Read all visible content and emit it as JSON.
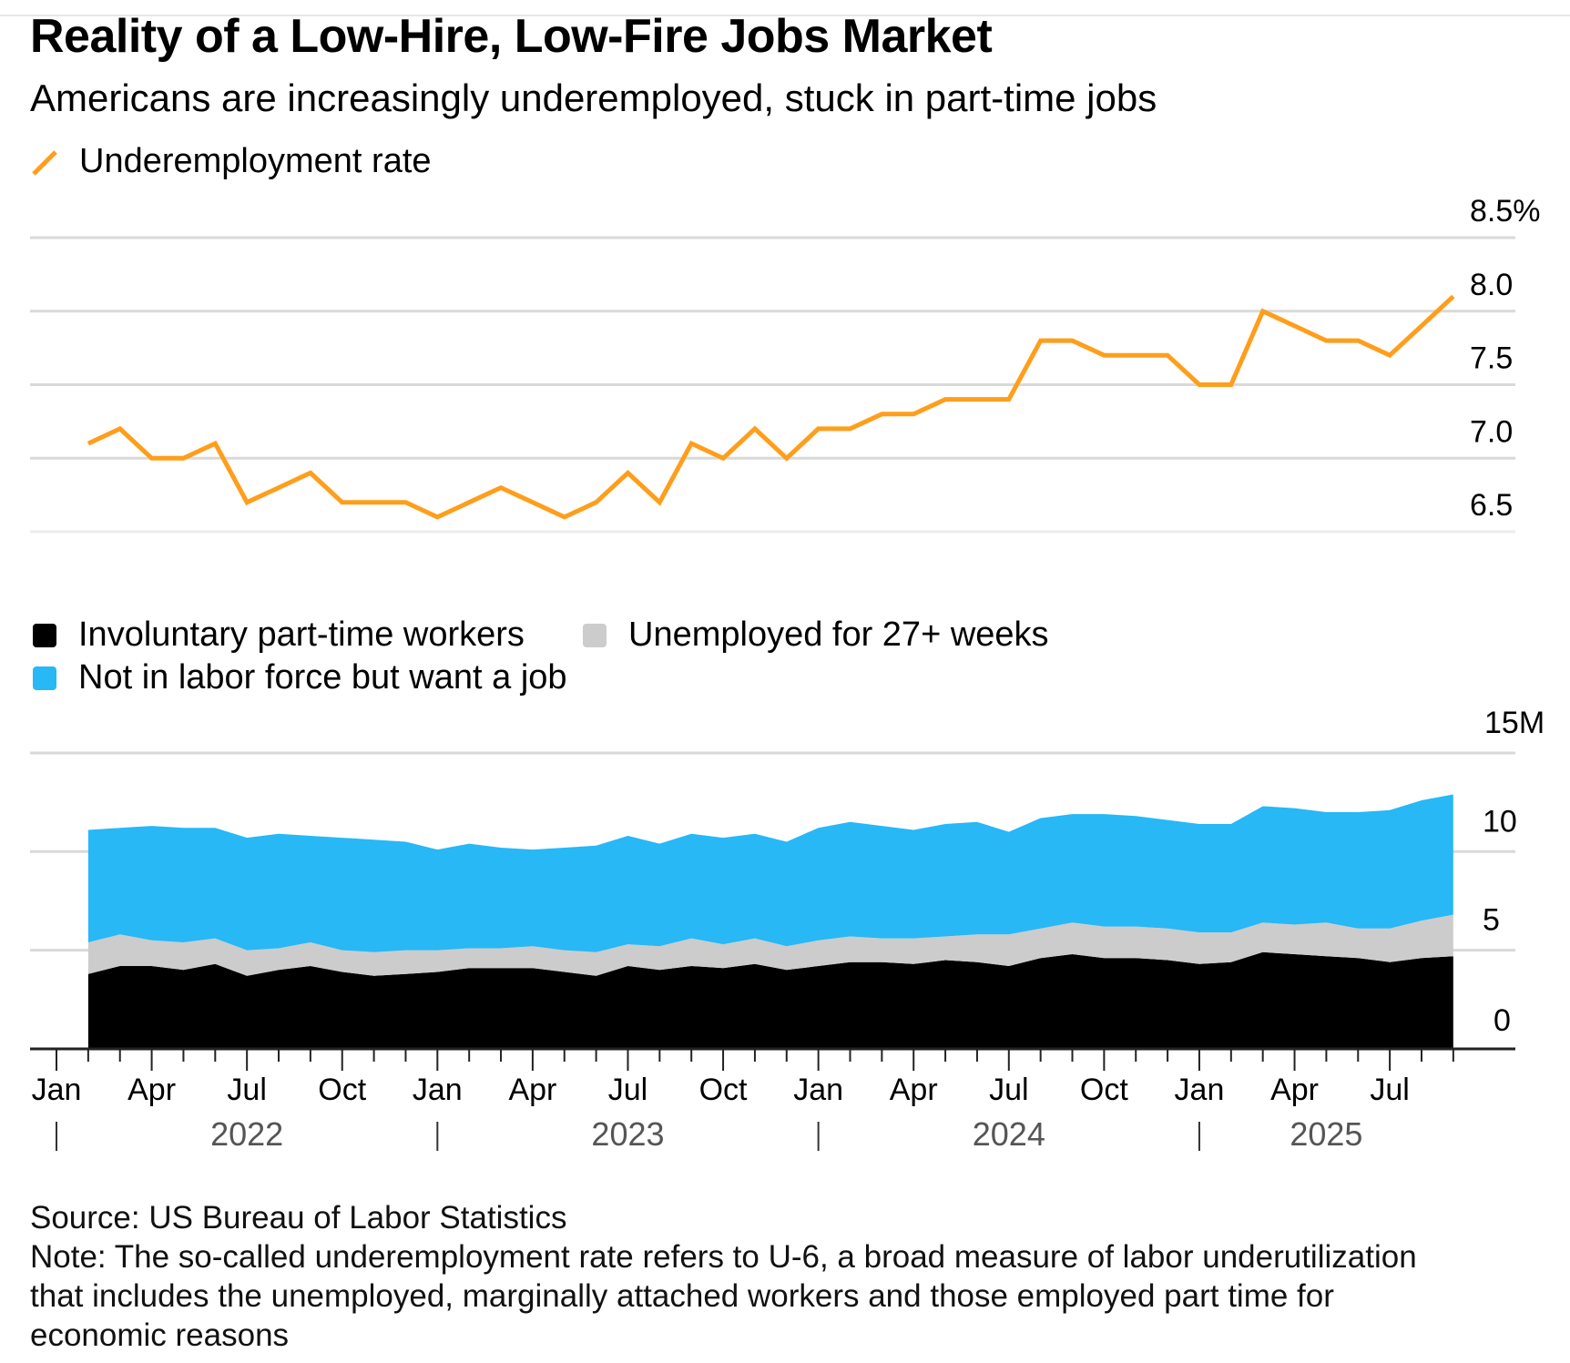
{
  "title": "Reality of a Low-Hire, Low-Fire Jobs Market",
  "subtitle": "Americans are increasingly underemployed, stuck in part-time jobs",
  "source": "Source: US Bureau of Labor Statistics",
  "note_lines": [
    "Note: The so-called underemployment rate refers to U-6, a broad measure of labor underutilization",
    "that includes the unemployed, marginally attached workers and those employed part time for",
    "economic reasons"
  ],
  "chart_data": [
    {
      "type": "line",
      "legend": [
        {
          "name": "Underemployment rate",
          "color": "#ff9e1b"
        }
      ],
      "legend_position": "top-left",
      "x": [
        "2022-02",
        "2022-03",
        "2022-04",
        "2022-05",
        "2022-06",
        "2022-07",
        "2022-08",
        "2022-09",
        "2022-10",
        "2022-11",
        "2022-12",
        "2023-01",
        "2023-02",
        "2023-03",
        "2023-04",
        "2023-05",
        "2023-06",
        "2023-07",
        "2023-08",
        "2023-09",
        "2023-10",
        "2023-11",
        "2023-12",
        "2024-01",
        "2024-02",
        "2024-03",
        "2024-04",
        "2024-05",
        "2024-06",
        "2024-07",
        "2024-08",
        "2024-09",
        "2024-10",
        "2024-11",
        "2024-12",
        "2025-01",
        "2025-02",
        "2025-03",
        "2025-04",
        "2025-05",
        "2025-06",
        "2025-07",
        "2025-08",
        "2025-09"
      ],
      "series": [
        {
          "name": "Underemployment rate",
          "color": "#ff9e1b",
          "values": [
            7.1,
            7.2,
            7.0,
            7.0,
            7.1,
            6.7,
            6.8,
            6.9,
            6.7,
            6.7,
            6.7,
            6.6,
            6.7,
            6.8,
            6.7,
            6.6,
            6.7,
            6.9,
            6.7,
            7.1,
            7.0,
            7.2,
            7.0,
            7.2,
            7.2,
            7.3,
            7.3,
            7.4,
            7.4,
            7.4,
            7.8,
            7.8,
            7.7,
            7.7,
            7.7,
            7.5,
            7.5,
            8.0,
            7.9,
            7.8,
            7.8,
            7.7,
            7.9,
            8.1
          ]
        }
      ],
      "yticks": [
        "6.5",
        "7.0",
        "7.5",
        "8.0",
        "8.5%"
      ],
      "ylim": [
        6.5,
        8.5
      ],
      "grid": true,
      "y_axis_side": "right"
    },
    {
      "type": "area",
      "stacked": true,
      "legend": [
        {
          "name": "Involuntary part-time workers",
          "color": "#000000"
        },
        {
          "name": "Unemployed for 27+ weeks",
          "color": "#cccccc"
        },
        {
          "name": "Not in labor force but want a job",
          "color": "#27b8f5"
        }
      ],
      "legend_position": "top-left",
      "series": [
        {
          "name": "Involuntary part-time workers",
          "color": "#000000",
          "values": [
            3.8,
            4.2,
            4.2,
            4.0,
            4.3,
            3.7,
            4.0,
            4.2,
            3.9,
            3.7,
            3.8,
            3.9,
            4.1,
            4.1,
            4.1,
            3.9,
            3.7,
            4.2,
            4.0,
            4.2,
            4.1,
            4.3,
            4.0,
            4.2,
            4.4,
            4.4,
            4.3,
            4.5,
            4.4,
            4.2,
            4.6,
            4.8,
            4.6,
            4.6,
            4.5,
            4.3,
            4.4,
            4.9,
            4.8,
            4.7,
            4.6,
            4.4,
            4.6,
            4.7
          ]
        },
        {
          "name": "Unemployed for 27+ weeks",
          "color": "#cccccc",
          "values": [
            1.6,
            1.6,
            1.3,
            1.4,
            1.3,
            1.3,
            1.1,
            1.2,
            1.1,
            1.2,
            1.2,
            1.1,
            1.0,
            1.0,
            1.1,
            1.1,
            1.2,
            1.1,
            1.2,
            1.4,
            1.2,
            1.3,
            1.2,
            1.3,
            1.3,
            1.2,
            1.3,
            1.2,
            1.4,
            1.6,
            1.5,
            1.6,
            1.6,
            1.6,
            1.6,
            1.6,
            1.5,
            1.5,
            1.5,
            1.7,
            1.5,
            1.7,
            1.9,
            2.1
          ]
        },
        {
          "name": "Not in labor force but want a job",
          "color": "#27b8f5",
          "values": [
            5.7,
            5.4,
            5.8,
            5.8,
            5.6,
            5.7,
            5.8,
            5.4,
            5.7,
            5.7,
            5.5,
            5.1,
            5.3,
            5.1,
            4.9,
            5.2,
            5.4,
            5.5,
            5.2,
            5.3,
            5.4,
            5.3,
            5.3,
            5.7,
            5.8,
            5.7,
            5.5,
            5.7,
            5.7,
            5.2,
            5.6,
            5.5,
            5.7,
            5.6,
            5.5,
            5.5,
            5.5,
            5.9,
            5.9,
            5.6,
            5.9,
            6.0,
            6.1,
            6.1
          ]
        }
      ],
      "yticks": [
        "0",
        "5",
        "10",
        "15M"
      ],
      "ylim": [
        0,
        15
      ],
      "grid": true,
      "y_axis_side": "right",
      "x_month_labels": [
        "Jan",
        "Apr",
        "Jul",
        "Oct",
        "Jan",
        "Apr",
        "Jul",
        "Oct",
        "Jan",
        "Apr",
        "Jul",
        "Oct",
        "Jan",
        "Apr",
        "Jul"
      ],
      "x_year_labels": [
        "2022",
        "2023",
        "2024",
        "2025"
      ]
    }
  ]
}
